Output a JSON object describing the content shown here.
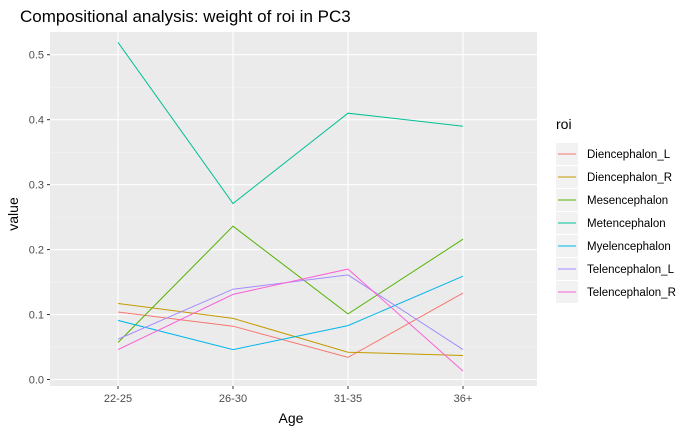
{
  "chart_data": {
    "type": "line",
    "title": "Compositional analysis: weight of roi in PC3",
    "xlabel": "Age",
    "ylabel": "value",
    "categories": [
      "22-25",
      "26-30",
      "31-35",
      "36+"
    ],
    "ylim": [
      -0.01,
      0.535
    ],
    "yticks": [
      0.0,
      0.1,
      0.2,
      0.3,
      0.4,
      0.5
    ],
    "ytick_labels": [
      "0.0",
      "0.1",
      "0.2",
      "0.3",
      "0.4",
      "0.5"
    ],
    "grid": true,
    "panel_background": "#ebebeb",
    "legend_title": "roi",
    "legend_position": "right",
    "series": [
      {
        "name": "Diencephalon_L",
        "color": "#f8766d",
        "values": [
          0.104,
          0.082,
          0.034,
          0.133
        ]
      },
      {
        "name": "Diencephalon_R",
        "color": "#c49a00",
        "values": [
          0.117,
          0.094,
          0.042,
          0.037
        ]
      },
      {
        "name": "Mesencephalon",
        "color": "#53b400",
        "values": [
          0.057,
          0.236,
          0.101,
          0.216
        ]
      },
      {
        "name": "Metencephalon",
        "color": "#00c094",
        "values": [
          0.519,
          0.271,
          0.41,
          0.39
        ]
      },
      {
        "name": "Myelencephalon",
        "color": "#00b6eb",
        "values": [
          0.091,
          0.046,
          0.083,
          0.159
        ]
      },
      {
        "name": "Telencephalon_L",
        "color": "#a58aff",
        "values": [
          0.062,
          0.139,
          0.161,
          0.046
        ]
      },
      {
        "name": "Telencephalon_R",
        "color": "#fb61d7",
        "values": [
          0.046,
          0.131,
          0.17,
          0.013
        ]
      }
    ]
  }
}
